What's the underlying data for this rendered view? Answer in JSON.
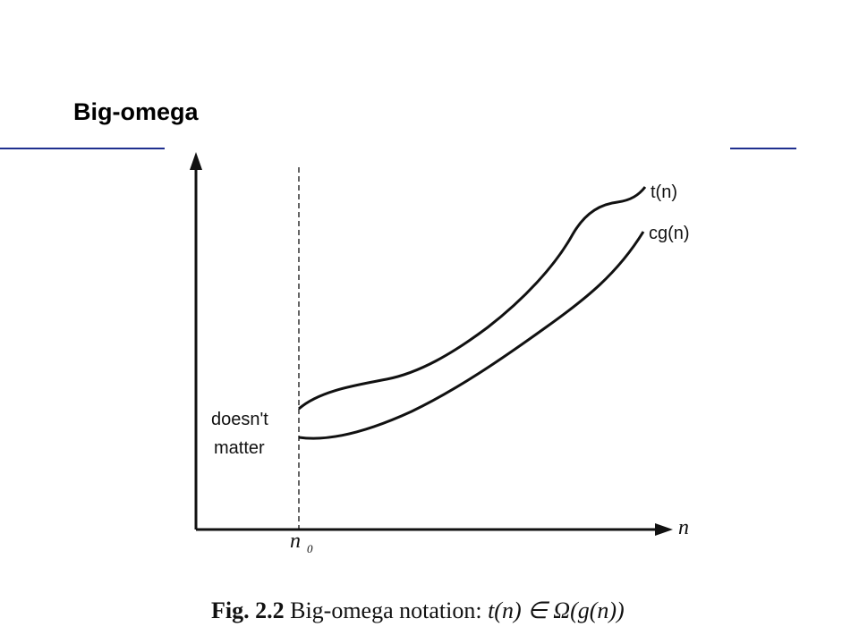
{
  "slide": {
    "title": "Big-omega",
    "accent_color": "#1f2f8f"
  },
  "diagram": {
    "x_axis_label": "n",
    "threshold_label": "n",
    "threshold_subscript": "0",
    "region_label_line1": "doesn't",
    "region_label_line2": "matter",
    "upper_curve_label": "t(n)",
    "lower_curve_label": "cg(n)"
  },
  "caption": {
    "figure_label": "Fig. 2.2",
    "text": "Big-omega notation:",
    "formula": "t(n) ∈ Ω(g(n))"
  }
}
